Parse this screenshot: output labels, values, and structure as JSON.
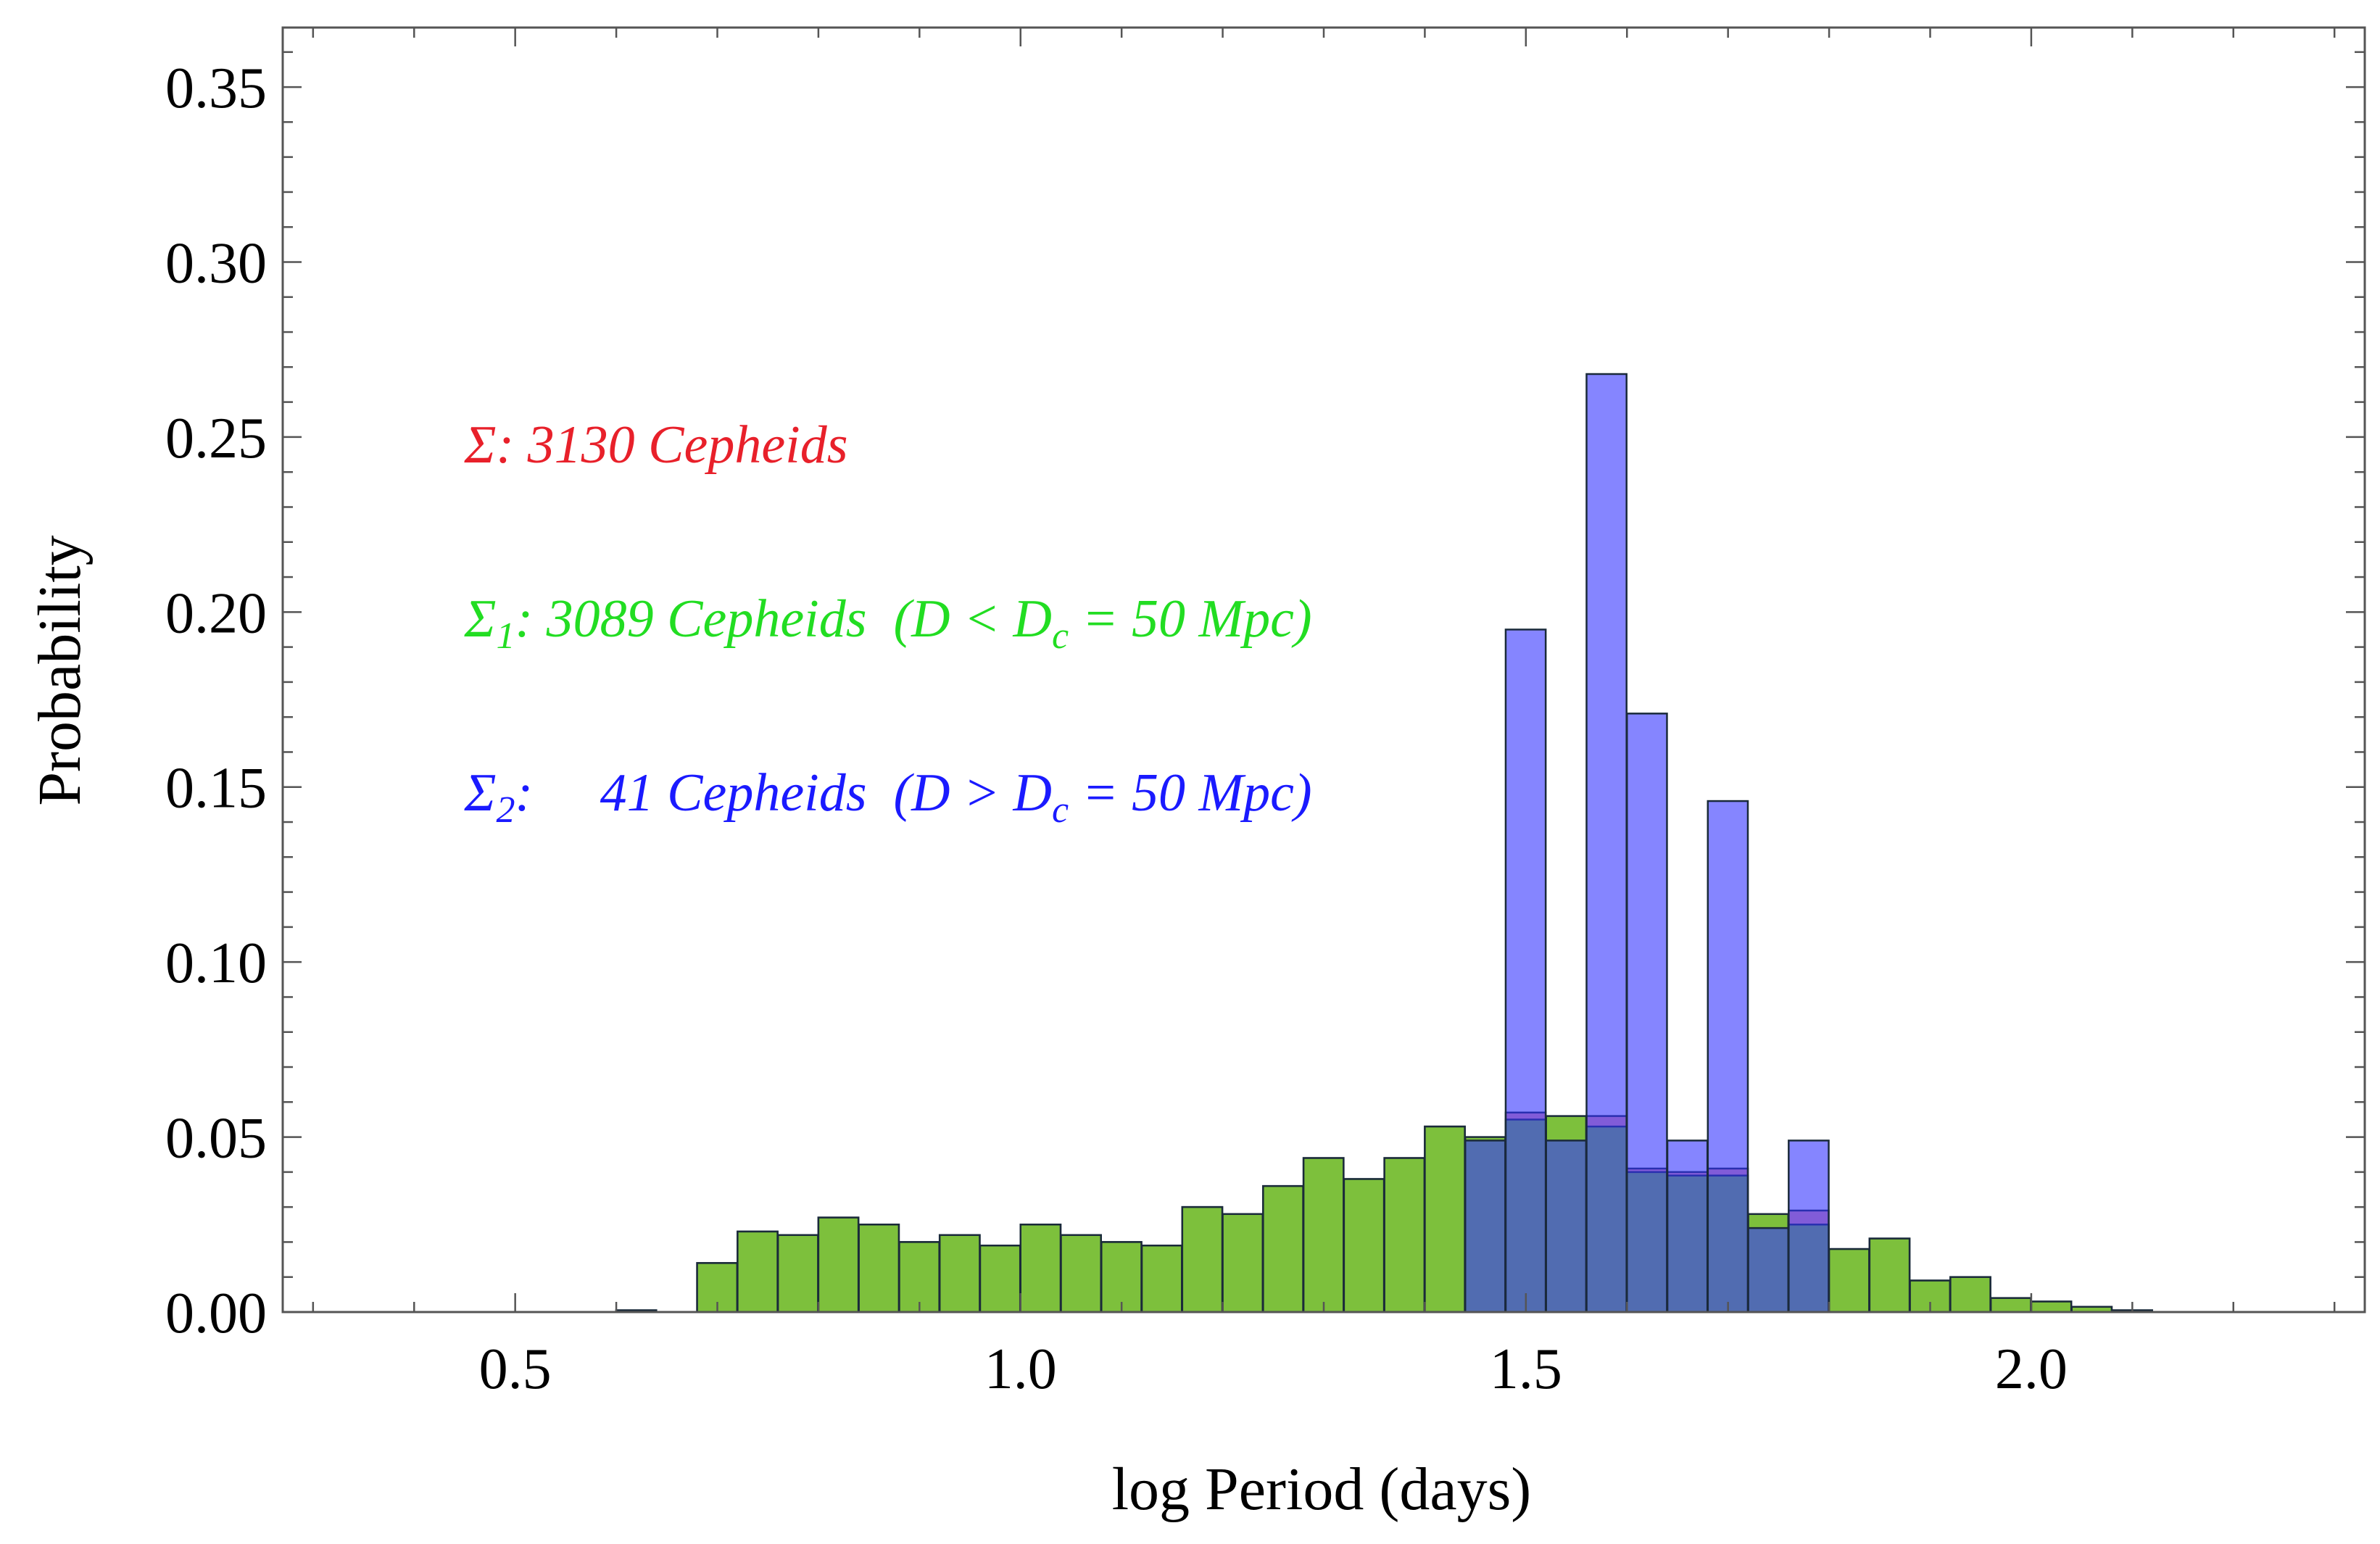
{
  "chart_data": {
    "type": "bar",
    "title": "",
    "xlabel": "log Period (days)",
    "ylabel": "Probability",
    "xlim": [
      0.27,
      2.33
    ],
    "ylim": [
      0,
      0.367
    ],
    "bin_width": 0.0396,
    "x_ticks": [
      {
        "value": 0.5,
        "label": "0.5"
      },
      {
        "value": 1.0,
        "label": "1.0"
      },
      {
        "value": 1.5,
        "label": "1.5"
      },
      {
        "value": 2.0,
        "label": "2.0"
      }
    ],
    "y_ticks": [
      {
        "value": 0.0,
        "label": "0.00"
      },
      {
        "value": 0.05,
        "label": "0.05"
      },
      {
        "value": 0.1,
        "label": "0.10"
      },
      {
        "value": 0.15,
        "label": "0.15"
      },
      {
        "value": 0.2,
        "label": "0.20"
      },
      {
        "value": 0.25,
        "label": "0.25"
      },
      {
        "value": 0.3,
        "label": "0.30"
      },
      {
        "value": 0.35,
        "label": "0.35"
      }
    ],
    "series": [
      {
        "name": "Σ: 3130 Cepheids",
        "color": "#e8202a",
        "opacity": 0.45,
        "bin_starts": [
          0.6,
          0.68,
          0.72,
          0.76,
          0.8,
          0.84,
          0.88,
          0.92,
          0.96,
          1.0,
          1.04,
          1.08,
          1.12,
          1.16,
          1.2,
          1.24,
          1.28,
          1.32,
          1.36,
          1.4,
          1.44,
          1.48,
          1.52,
          1.56,
          1.6,
          1.64,
          1.68,
          1.72,
          1.76,
          1.8,
          1.84,
          1.88,
          1.92,
          1.96,
          2.0,
          2.04,
          2.08
        ],
        "values": [
          0.0005,
          0.014,
          0.023,
          0.022,
          0.027,
          0.025,
          0.02,
          0.022,
          0.019,
          0.025,
          0.022,
          0.02,
          0.019,
          0.03,
          0.028,
          0.036,
          0.044,
          0.038,
          0.044,
          0.053,
          0.049,
          0.057,
          0.049,
          0.056,
          0.041,
          0.04,
          0.041,
          0.025,
          0.029,
          0.018,
          0.021,
          0.009,
          0.01,
          0.004,
          0.003,
          0.0015,
          0.0005
        ]
      },
      {
        "name": "Σ₁: 3089 Cepheids (D < Dc = 50 Mpc)",
        "color": "#7dc03c",
        "opacity": 1.0,
        "bin_starts": [
          0.6,
          0.68,
          0.72,
          0.76,
          0.8,
          0.84,
          0.88,
          0.92,
          0.96,
          1.0,
          1.04,
          1.08,
          1.12,
          1.16,
          1.2,
          1.24,
          1.28,
          1.32,
          1.36,
          1.4,
          1.44,
          1.48,
          1.52,
          1.56,
          1.6,
          1.64,
          1.68,
          1.72,
          1.76,
          1.8,
          1.84,
          1.88,
          1.92,
          1.96,
          2.0,
          2.04,
          2.08
        ],
        "values": [
          0.0005,
          0.014,
          0.023,
          0.022,
          0.027,
          0.025,
          0.02,
          0.022,
          0.019,
          0.025,
          0.022,
          0.02,
          0.019,
          0.03,
          0.028,
          0.036,
          0.044,
          0.038,
          0.044,
          0.053,
          0.05,
          0.055,
          0.056,
          0.053,
          0.04,
          0.039,
          0.039,
          0.028,
          0.025,
          0.018,
          0.021,
          0.009,
          0.01,
          0.004,
          0.003,
          0.0015,
          0.0005
        ]
      },
      {
        "name": "Σ₂: 41 Cepheids (D > Dc = 50 Mpc)",
        "color": "#3333ff",
        "opacity": 0.6,
        "bin_starts": [
          1.44,
          1.48,
          1.52,
          1.56,
          1.6,
          1.64,
          1.68,
          1.72,
          1.76
        ],
        "values": [
          0.049,
          0.195,
          0.049,
          0.268,
          0.171,
          0.049,
          0.146,
          0.024,
          0.049
        ]
      }
    ],
    "annotations": [
      {
        "prefix": "Σ",
        "sub": "",
        "text": ": 3130 Cepheids",
        "color": "#e8202a"
      },
      {
        "prefix": "Σ",
        "sub": "1",
        "text": ": 3089 Cepheids  (D < D",
        "sub2": "c",
        "tail": " = 50 Mpc)",
        "color": "#22dd22"
      },
      {
        "prefix": "Σ",
        "sub": "2",
        "text": ":     41 Cepheids  (D > D",
        "sub2": "c",
        "tail": " = 50 Mpc)",
        "color": "#1a1aff"
      }
    ]
  }
}
